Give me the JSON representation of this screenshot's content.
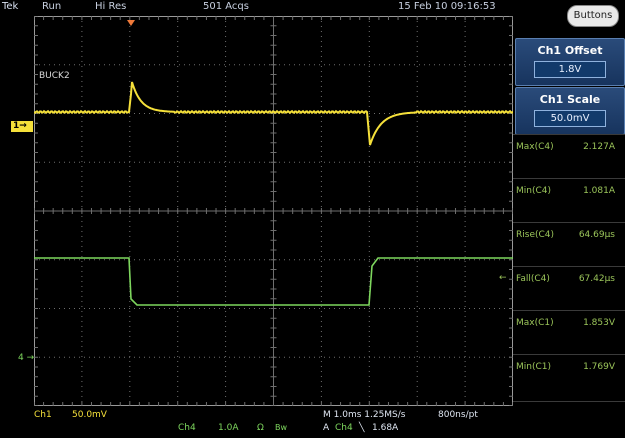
{
  "topbar": {
    "brand": "Tek",
    "run_state": "Run",
    "acq_mode": "Hi Res",
    "acquisitions": "501 Acqs",
    "datetime": "15 Feb 10 09:16:53"
  },
  "screen": {
    "waveform_label": "BUCK2",
    "ch1_marker": "1",
    "ch4_marker": "4",
    "ch1_color": "#f5e03a",
    "ch4_color": "#7ed75e",
    "grid_color": "#6e6e6e"
  },
  "sidebar": {
    "buttons_label": "Buttons",
    "offset": {
      "title": "Ch1 Offset",
      "value": "1.8V"
    },
    "scale": {
      "title": "Ch1 Scale",
      "value": "50.0mV"
    },
    "measurements": [
      {
        "name": "Max(C4)",
        "value": "2.127A"
      },
      {
        "name": "Min(C4)",
        "value": "1.081A"
      },
      {
        "name": "Rise(C4)",
        "value": "64.69μs"
      },
      {
        "name": "Fall(C4)",
        "value": "67.42μs"
      },
      {
        "name": "Max(C1)",
        "value": "1.853V"
      },
      {
        "name": "Min(C1)",
        "value": "1.769V"
      }
    ]
  },
  "bottombar": {
    "ch1_name": "Ch1",
    "ch1_scale": "50.0mV",
    "ch4_name": "Ch4",
    "ch4_scale": "1.0A",
    "ch4_coupling": "Ω",
    "ch4_bw": "Bw",
    "horizontal": "M 1.0ms 1.25MS/s",
    "record": "800ns/pt",
    "trigger_label": "A",
    "trigger_source": "Ch4",
    "trigger_slope": "╲",
    "trigger_level": "1.68A"
  }
}
